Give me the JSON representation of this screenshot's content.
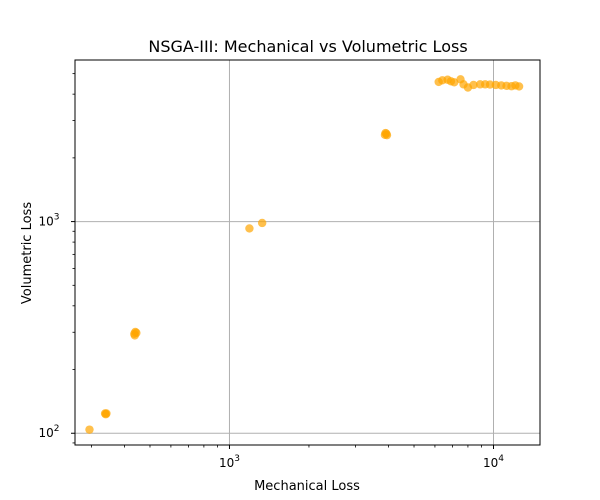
{
  "chart_data": {
    "type": "scatter",
    "title": "NSGA-III: Mechanical vs Volumetric Loss",
    "xlabel": "Mechanical Loss",
    "ylabel": "Volumetric Loss",
    "xscale": "log",
    "yscale": "log",
    "xlim": [
      260,
      15000
    ],
    "ylim": [
      88,
      5800
    ],
    "grid": true,
    "marker_color": "#FFA500",
    "x_ticks": [
      {
        "value": 1000,
        "base": "10",
        "exp": "3"
      },
      {
        "value": 10000,
        "base": "10",
        "exp": "4"
      }
    ],
    "y_ticks": [
      {
        "value": 100,
        "base": "10",
        "exp": "2"
      },
      {
        "value": 1000,
        "base": "10",
        "exp": "3"
      }
    ],
    "points": [
      {
        "x": 295,
        "y": 104
      },
      {
        "x": 338,
        "y": 124
      },
      {
        "x": 342,
        "y": 124
      },
      {
        "x": 340,
        "y": 123
      },
      {
        "x": 436,
        "y": 295
      },
      {
        "x": 440,
        "y": 301
      },
      {
        "x": 444,
        "y": 298
      },
      {
        "x": 438,
        "y": 290
      },
      {
        "x": 1190,
        "y": 928
      },
      {
        "x": 1330,
        "y": 985
      },
      {
        "x": 3880,
        "y": 2570
      },
      {
        "x": 3930,
        "y": 2600
      },
      {
        "x": 3900,
        "y": 2620
      },
      {
        "x": 3950,
        "y": 2560
      },
      {
        "x": 6200,
        "y": 4570
      },
      {
        "x": 6400,
        "y": 4650
      },
      {
        "x": 6700,
        "y": 4680
      },
      {
        "x": 6900,
        "y": 4600
      },
      {
        "x": 7100,
        "y": 4550
      },
      {
        "x": 7500,
        "y": 4700
      },
      {
        "x": 7700,
        "y": 4450
      },
      {
        "x": 8000,
        "y": 4300
      },
      {
        "x": 8400,
        "y": 4420
      },
      {
        "x": 8900,
        "y": 4450
      },
      {
        "x": 9300,
        "y": 4450
      },
      {
        "x": 9700,
        "y": 4440
      },
      {
        "x": 10200,
        "y": 4420
      },
      {
        "x": 10700,
        "y": 4400
      },
      {
        "x": 11200,
        "y": 4380
      },
      {
        "x": 11700,
        "y": 4360
      },
      {
        "x": 12100,
        "y": 4400
      },
      {
        "x": 12500,
        "y": 4350
      }
    ]
  }
}
